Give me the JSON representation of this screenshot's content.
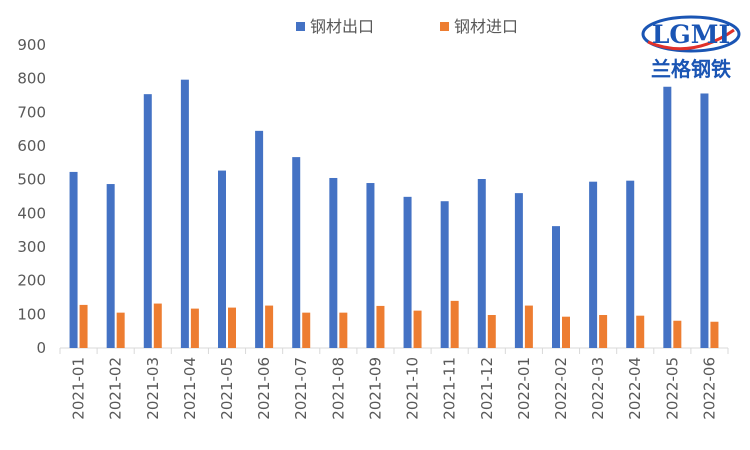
{
  "logo": {
    "mark": "LGMI",
    "name": "兰格钢铁",
    "colors": {
      "blue": "#1a55b4",
      "red": "#e0312a"
    }
  },
  "colors": {
    "export": "#4472c4",
    "import": "#ed7d31",
    "axis": "#d9d9d9",
    "text": "#595959"
  },
  "chart_data": {
    "type": "bar",
    "title": "",
    "xlabel": "",
    "ylabel": "",
    "ylim": [
      0,
      900
    ],
    "yticks": [
      0,
      100,
      200,
      300,
      400,
      500,
      600,
      700,
      800,
      900
    ],
    "grid": false,
    "legend_position": "top-center",
    "categories": [
      "2021-01",
      "2021-02",
      "2021-03",
      "2021-04",
      "2021-05",
      "2021-06",
      "2021-07",
      "2021-08",
      "2021-09",
      "2021-10",
      "2021-11",
      "2021-12",
      "2022-01",
      "2022-02",
      "2022-03",
      "2022-04",
      "2022-05",
      "2022-06"
    ],
    "series": [
      {
        "name": "钢材出口",
        "color": "#4472c4",
        "values": [
          523,
          487,
          754,
          797,
          527,
          645,
          567,
          505,
          490,
          449,
          436,
          502,
          460,
          362,
          494,
          497,
          776,
          756
        ]
      },
      {
        "name": "钢材进口",
        "color": "#ed7d31",
        "values": [
          128,
          105,
          132,
          117,
          120,
          126,
          105,
          105,
          125,
          111,
          140,
          98,
          126,
          93,
          98,
          96,
          81,
          78
        ]
      }
    ]
  }
}
